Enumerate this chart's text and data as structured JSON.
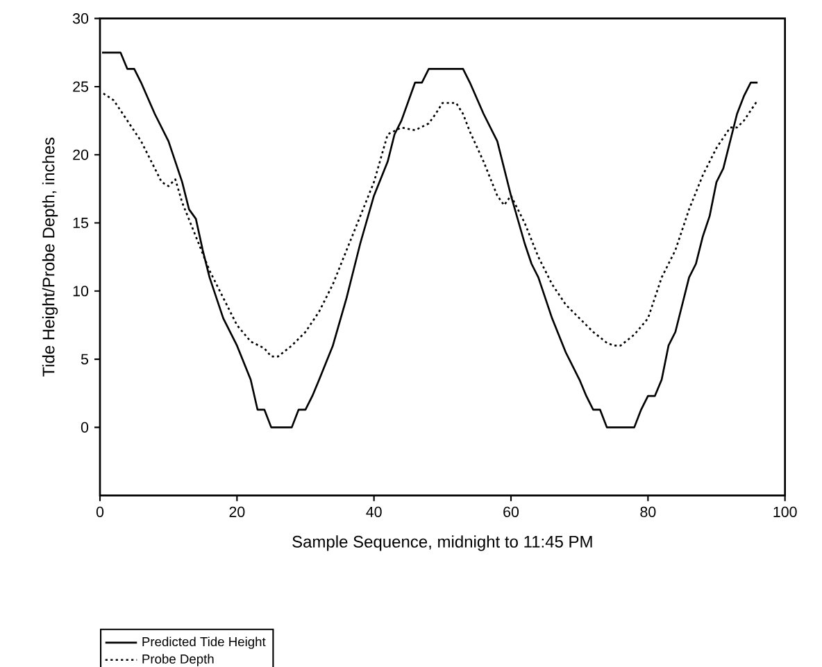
{
  "chart_data": {
    "type": "line",
    "xlabel": "Sample Sequence, midnight to 11:45 PM",
    "ylabel": "Tide Height/Probe Depth, inches",
    "xlim": [
      0,
      100
    ],
    "ylim": [
      -5,
      30
    ],
    "xticks": [
      0,
      20,
      40,
      60,
      80,
      100
    ],
    "yticks": [
      0,
      5,
      10,
      15,
      20,
      25,
      30
    ],
    "grid": false,
    "legend": "bottom left",
    "marker": "none",
    "series": [
      {
        "name": "Predicted Tide Height",
        "color": "#000000",
        "line_style": "solid",
        "x": [
          0.3,
          3,
          4,
          5,
          6,
          8,
          10,
          12,
          13,
          14,
          15,
          16,
          18,
          20,
          22,
          23,
          24,
          25,
          28,
          29,
          30,
          31,
          32,
          34,
          36,
          38,
          40,
          42,
          43,
          44,
          46,
          47,
          48,
          53,
          54,
          56,
          58,
          60,
          62,
          63,
          64,
          66,
          68,
          70,
          71,
          72,
          73,
          74,
          78,
          79,
          80,
          81,
          82,
          83,
          84,
          85,
          86,
          87,
          88,
          89,
          90,
          91,
          92,
          93,
          94,
          95,
          96
        ],
        "values": [
          27.5,
          27.5,
          26.3,
          26.3,
          25.3,
          23,
          21,
          18,
          16,
          15.3,
          13,
          11,
          8,
          6,
          3.5,
          1.3,
          1.3,
          0,
          0,
          1.3,
          1.3,
          2.3,
          3.5,
          6,
          9.5,
          13.5,
          17,
          19.5,
          21.5,
          22.5,
          25.3,
          25.3,
          26.3,
          26.3,
          25.3,
          23,
          21,
          17,
          13.5,
          12,
          11,
          8,
          5.5,
          3.5,
          2.3,
          1.3,
          1.3,
          0,
          0,
          1.3,
          2.3,
          2.3,
          3.5,
          6,
          7,
          9,
          11,
          12,
          14,
          15.5,
          18,
          19,
          21,
          23,
          24.3,
          25.3,
          25.3
        ]
      },
      {
        "name": "Probe Depth",
        "color": "#000000",
        "line_style": "dotted",
        "x": [
          0.5,
          2,
          4,
          6,
          8,
          9,
          10,
          11,
          12,
          14,
          16,
          18,
          20,
          22,
          24,
          25,
          26,
          28,
          30,
          32,
          34,
          36,
          38,
          40,
          42,
          44,
          46,
          48,
          49,
          50,
          52,
          53,
          54,
          56,
          58,
          59,
          60,
          62,
          64,
          66,
          68,
          70,
          72,
          74,
          75,
          76,
          78,
          80,
          82,
          84,
          86,
          88,
          90,
          92,
          93,
          94,
          96
        ],
        "values": [
          24.5,
          24,
          22.5,
          21,
          19,
          18,
          17.7,
          18.2,
          16.5,
          14,
          11.5,
          9.5,
          7.5,
          6.3,
          5.8,
          5.2,
          5.2,
          6,
          7,
          8.5,
          10.5,
          13,
          15.5,
          18,
          21.5,
          22,
          21.8,
          22.3,
          23,
          23.8,
          23.8,
          23,
          21.7,
          19.5,
          17,
          16.3,
          17,
          15,
          12.5,
          10.5,
          9,
          8,
          7,
          6.2,
          6,
          6,
          6.8,
          8,
          11,
          13,
          16,
          18.5,
          20.5,
          22,
          22,
          22.5,
          24
        ]
      }
    ]
  }
}
